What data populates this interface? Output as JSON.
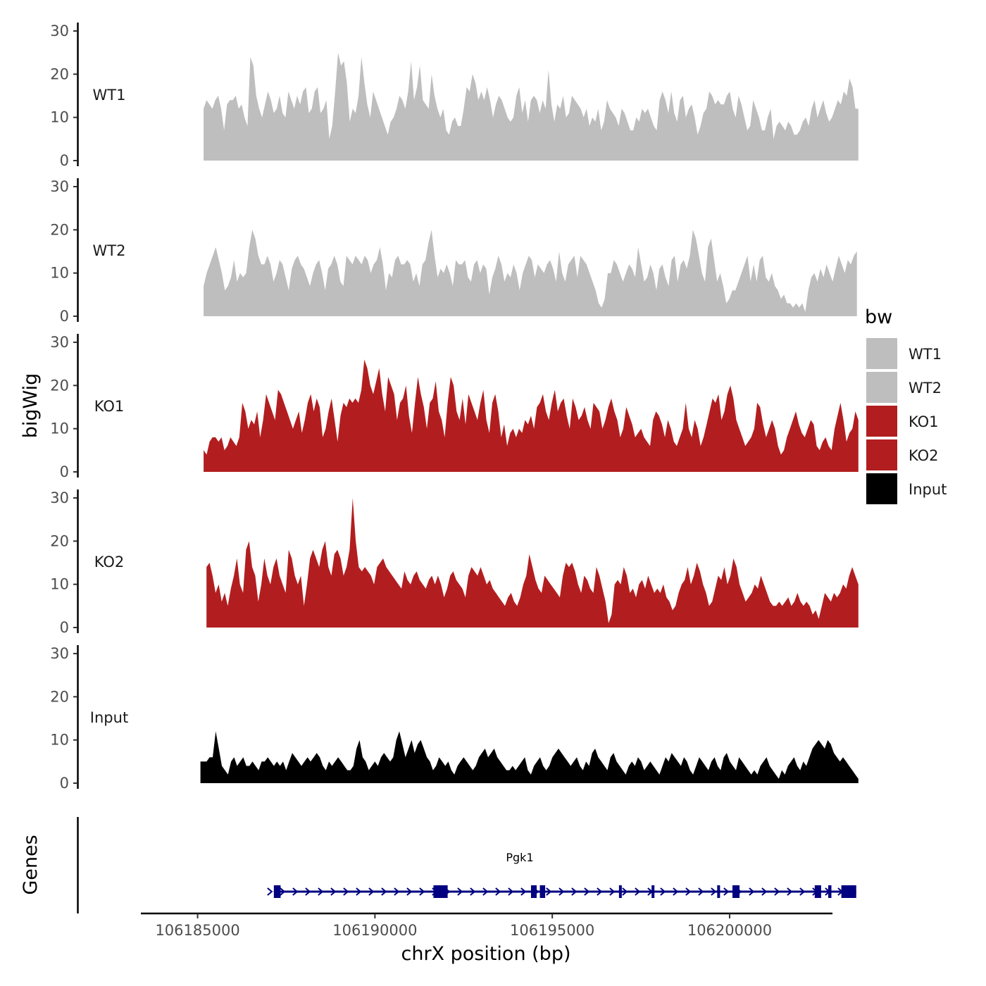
{
  "chart_data": {
    "type": "area",
    "ylabel": "bigWig",
    "xlabel": "chrX position (bp)",
    "ylim": [
      0,
      30
    ],
    "yticks": [
      0,
      10,
      20,
      30
    ],
    "xlim": [
      106183400,
      106202900
    ],
    "xticks": [
      106185000,
      106190000,
      106195000,
      106200000
    ],
    "xtick_labels": [
      "106185000",
      "106190000",
      "106195000",
      "106200000"
    ],
    "tracks": [
      {
        "name": "WT1",
        "label": "WT1",
        "color": "#bebebe",
        "x_start": 106185170,
        "x_end": 106203630,
        "values": [
          12,
          14,
          13,
          12,
          14,
          15,
          12,
          7,
          13,
          14,
          14,
          15,
          12,
          13,
          10,
          8,
          24,
          22,
          15,
          12,
          10,
          13,
          16,
          14,
          11,
          12,
          15,
          11,
          10,
          16,
          14,
          12,
          15,
          13,
          16,
          17,
          11,
          12,
          16,
          17,
          11,
          12,
          14,
          5,
          8,
          16,
          25,
          22,
          23,
          18,
          9,
          12,
          11,
          15,
          24,
          18,
          13,
          10,
          16,
          14,
          12,
          10,
          8,
          6,
          9,
          10,
          12,
          15,
          14,
          12,
          16,
          23,
          14,
          17,
          22,
          14,
          13,
          12,
          20,
          15,
          12,
          10,
          12,
          7,
          6,
          9,
          10,
          8,
          8,
          12,
          17,
          16,
          20,
          18,
          14,
          16,
          14,
          17,
          14,
          10,
          13,
          15,
          14,
          12,
          10,
          9,
          10,
          15,
          17,
          11,
          14,
          9,
          14,
          15,
          14,
          11,
          14,
          12,
          21,
          13,
          9,
          13,
          12,
          15,
          10,
          11,
          15,
          14,
          13,
          12,
          10,
          12,
          8,
          10,
          9,
          12,
          7,
          9,
          14,
          12,
          11,
          10,
          8,
          12,
          11,
          9,
          7,
          7,
          10,
          9,
          12,
          11,
          12,
          10,
          8,
          7,
          14,
          16,
          14,
          11,
          16,
          11,
          9,
          14,
          15,
          10,
          12,
          13,
          10,
          6,
          8,
          11,
          12,
          16,
          15,
          13,
          14,
          13,
          13,
          15,
          16,
          12,
          10,
          15,
          13,
          10,
          7,
          8,
          14,
          12,
          10,
          7,
          7,
          10,
          12,
          5,
          8,
          9,
          8,
          7,
          9,
          8,
          6,
          6,
          7,
          9,
          10,
          8,
          12,
          14,
          10,
          12,
          14,
          11,
          9,
          10,
          12,
          14,
          13,
          16,
          15,
          19,
          17,
          12,
          12
        ]
      },
      {
        "name": "WT2",
        "label": "WT2",
        "color": "#bebebe",
        "x_start": 106185170,
        "x_end": 106203590,
        "values": [
          7,
          10,
          12,
          14,
          16,
          13,
          10,
          6,
          7,
          9,
          13,
          8,
          10,
          9,
          10,
          16,
          20,
          18,
          14,
          12,
          12,
          14,
          12,
          8,
          10,
          13,
          12,
          9,
          6,
          11,
          13,
          14,
          12,
          11,
          9,
          7,
          10,
          12,
          13,
          10,
          6,
          11,
          12,
          14,
          12,
          8,
          7,
          14,
          13,
          12,
          14,
          13,
          12,
          14,
          13,
          10,
          12,
          13,
          16,
          12,
          6,
          10,
          9,
          13,
          14,
          12,
          12,
          13,
          12,
          8,
          10,
          7,
          12,
          13,
          17,
          20,
          14,
          9,
          11,
          10,
          12,
          10,
          7,
          13,
          12,
          12,
          13,
          9,
          8,
          12,
          13,
          10,
          12,
          11,
          5,
          9,
          11,
          14,
          12,
          8,
          10,
          9,
          12,
          10,
          6,
          10,
          12,
          14,
          13,
          9,
          12,
          11,
          10,
          12,
          13,
          11,
          8,
          15,
          10,
          8,
          12,
          13,
          14,
          9,
          14,
          13,
          12,
          10,
          8,
          6,
          3,
          2,
          4,
          10,
          10,
          13,
          12,
          10,
          8,
          10,
          12,
          11,
          9,
          16,
          12,
          8,
          9,
          12,
          10,
          6,
          11,
          12,
          9,
          7,
          13,
          14,
          8,
          12,
          13,
          11,
          14,
          20,
          18,
          14,
          10,
          8,
          16,
          18,
          13,
          8,
          10,
          7,
          3,
          4,
          6,
          6,
          8,
          10,
          12,
          14,
          8,
          12,
          8,
          13,
          14,
          9,
          8,
          10,
          7,
          6,
          4,
          5,
          3,
          3,
          2,
          3,
          2,
          3,
          1,
          6,
          9,
          10,
          8,
          11,
          9,
          12,
          10,
          8,
          11,
          14,
          12,
          10,
          13,
          12,
          14,
          15
        ]
      },
      {
        "name": "KO1",
        "label": "KO1",
        "color": "#b21e1f",
        "x_start": 106185170,
        "x_end": 106203630,
        "values": [
          5,
          4,
          7,
          8,
          8,
          7,
          8,
          5,
          6,
          8,
          7,
          6,
          8,
          16,
          14,
          10,
          12,
          11,
          14,
          8,
          12,
          18,
          16,
          14,
          12,
          19,
          18,
          16,
          14,
          12,
          10,
          12,
          14,
          9,
          12,
          16,
          18,
          14,
          17,
          15,
          8,
          10,
          14,
          17,
          12,
          7,
          13,
          16,
          15,
          17,
          16,
          17,
          16,
          19,
          26,
          24,
          20,
          18,
          21,
          24,
          18,
          14,
          22,
          20,
          18,
          12,
          16,
          17,
          20,
          13,
          9,
          16,
          22,
          18,
          15,
          10,
          16,
          17,
          21,
          14,
          12,
          8,
          16,
          22,
          20,
          14,
          12,
          17,
          11,
          18,
          16,
          14,
          12,
          16,
          19,
          12,
          9,
          16,
          18,
          14,
          8,
          11,
          6,
          9,
          10,
          8,
          10,
          9,
          12,
          11,
          13,
          10,
          15,
          16,
          18,
          14,
          12,
          16,
          19,
          14,
          16,
          17,
          13,
          10,
          17,
          15,
          12,
          13,
          15,
          12,
          10,
          16,
          15,
          14,
          10,
          12,
          15,
          17,
          14,
          12,
          8,
          10,
          15,
          13,
          11,
          8,
          9,
          10,
          8,
          7,
          6,
          12,
          14,
          13,
          11,
          8,
          12,
          10,
          7,
          6,
          8,
          10,
          16,
          10,
          8,
          12,
          10,
          6,
          8,
          11,
          14,
          17,
          16,
          18,
          12,
          14,
          18,
          20,
          17,
          12,
          10,
          8,
          6,
          7,
          8,
          10,
          16,
          15,
          11,
          8,
          10,
          12,
          10,
          6,
          4,
          5,
          8,
          10,
          12,
          14,
          11,
          9,
          8,
          10,
          12,
          11,
          6,
          5,
          7,
          8,
          6,
          5,
          10,
          13,
          16,
          12,
          7,
          9,
          10,
          14,
          12
        ]
      },
      {
        "name": "KO2",
        "label": "KO2",
        "color": "#b21e1f",
        "x_start": 106185250,
        "x_end": 106203630,
        "values": [
          14,
          15,
          12,
          8,
          10,
          6,
          8,
          5,
          9,
          12,
          16,
          10,
          8,
          18,
          20,
          14,
          12,
          6,
          10,
          16,
          12,
          10,
          14,
          16,
          12,
          10,
          8,
          18,
          16,
          12,
          10,
          12,
          5,
          10,
          16,
          18,
          16,
          14,
          18,
          20,
          14,
          12,
          17,
          18,
          16,
          12,
          14,
          18,
          30,
          20,
          14,
          13,
          14,
          13,
          12,
          10,
          14,
          15,
          16,
          14,
          13,
          12,
          11,
          10,
          9,
          13,
          11,
          10,
          12,
          13,
          11,
          10,
          9,
          11,
          12,
          10,
          12,
          10,
          7,
          9,
          12,
          13,
          11,
          10,
          9,
          7,
          12,
          14,
          13,
          12,
          14,
          12,
          10,
          11,
          9,
          8,
          7,
          6,
          5,
          7,
          8,
          6,
          5,
          7,
          10,
          12,
          17,
          14,
          11,
          9,
          8,
          12,
          11,
          10,
          9,
          8,
          7,
          12,
          15,
          14,
          15,
          13,
          10,
          8,
          12,
          11,
          9,
          8,
          14,
          12,
          9,
          6,
          1,
          3,
          10,
          11,
          10,
          14,
          12,
          8,
          9,
          7,
          10,
          11,
          9,
          12,
          10,
          8,
          9,
          8,
          10,
          7,
          6,
          4,
          5,
          8,
          10,
          11,
          14,
          10,
          12,
          15,
          13,
          10,
          8,
          5,
          6,
          9,
          12,
          11,
          14,
          10,
          12,
          16,
          14,
          10,
          8,
          6,
          7,
          8,
          10,
          9,
          12,
          10,
          8,
          6,
          5,
          5,
          6,
          5,
          6,
          7,
          5,
          6,
          8,
          6,
          5,
          6,
          5,
          3,
          4,
          2,
          5,
          8,
          7,
          6,
          8,
          7,
          8,
          10,
          9,
          12,
          14,
          12,
          10
        ]
      },
      {
        "name": "Input",
        "label": "Input",
        "color": "#000000",
        "x_start": 106185080,
        "x_end": 106203630,
        "values": [
          5,
          5,
          5,
          6,
          6,
          12,
          8,
          4,
          3,
          2,
          5,
          6,
          4,
          5,
          6,
          4,
          4,
          5,
          4,
          3,
          5,
          5,
          6,
          5,
          4,
          5,
          4,
          5,
          3,
          5,
          7,
          6,
          5,
          4,
          5,
          6,
          5,
          6,
          7,
          6,
          4,
          3,
          5,
          4,
          5,
          6,
          5,
          4,
          3,
          3,
          4,
          8,
          10,
          6,
          5,
          3,
          4,
          5,
          4,
          6,
          7,
          6,
          5,
          6,
          10,
          12,
          9,
          6,
          8,
          10,
          7,
          9,
          10,
          8,
          6,
          5,
          3,
          4,
          6,
          5,
          4,
          5,
          3,
          2,
          4,
          5,
          6,
          5,
          4,
          3,
          4,
          6,
          7,
          8,
          6,
          7,
          8,
          6,
          5,
          4,
          3,
          3,
          4,
          3,
          4,
          5,
          6,
          3,
          2,
          4,
          5,
          6,
          4,
          3,
          4,
          6,
          7,
          8,
          7,
          6,
          5,
          4,
          5,
          6,
          4,
          3,
          5,
          4,
          7,
          8,
          6,
          5,
          4,
          3,
          6,
          7,
          5,
          4,
          3,
          2,
          4,
          5,
          4,
          6,
          5,
          3,
          4,
          5,
          4,
          3,
          2,
          4,
          6,
          5,
          7,
          6,
          5,
          4,
          6,
          5,
          3,
          2,
          4,
          6,
          5,
          4,
          3,
          5,
          6,
          4,
          3,
          6,
          7,
          5,
          4,
          3,
          6,
          5,
          4,
          3,
          2,
          3,
          2,
          4,
          5,
          6,
          4,
          3,
          2,
          1,
          3,
          2,
          4,
          5,
          6,
          4,
          3,
          5,
          4,
          6,
          8,
          9,
          10,
          9,
          8,
          10,
          9,
          7,
          6,
          5,
          6,
          5,
          4,
          3,
          2,
          1
        ]
      }
    ],
    "genes_panel": {
      "ylabel": "Genes",
      "gene_name": "Pgk1",
      "strand": "+",
      "color": "#000080",
      "tx_start": 106187150,
      "tx_end": 106203570,
      "exons": [
        [
          106187150,
          106187340
        ],
        [
          106191650,
          106192050
        ],
        [
          106194400,
          106194560
        ],
        [
          106194650,
          106194800
        ],
        [
          106196880,
          106196960
        ],
        [
          106197800,
          106197880
        ],
        [
          106199650,
          106199730
        ],
        [
          106200080,
          106200280
        ],
        [
          106202400,
          106202580
        ],
        [
          106202780,
          106202870
        ],
        [
          106203150,
          106203570
        ]
      ]
    },
    "legend": {
      "title": "bw",
      "position": "right",
      "entries": [
        {
          "label": "WT1",
          "color": "#bebebe"
        },
        {
          "label": "WT2",
          "color": "#bebebe"
        },
        {
          "label": "KO1",
          "color": "#b21e1f"
        },
        {
          "label": "KO2",
          "color": "#b21e1f"
        },
        {
          "label": "Input",
          "color": "#000000"
        }
      ]
    }
  }
}
